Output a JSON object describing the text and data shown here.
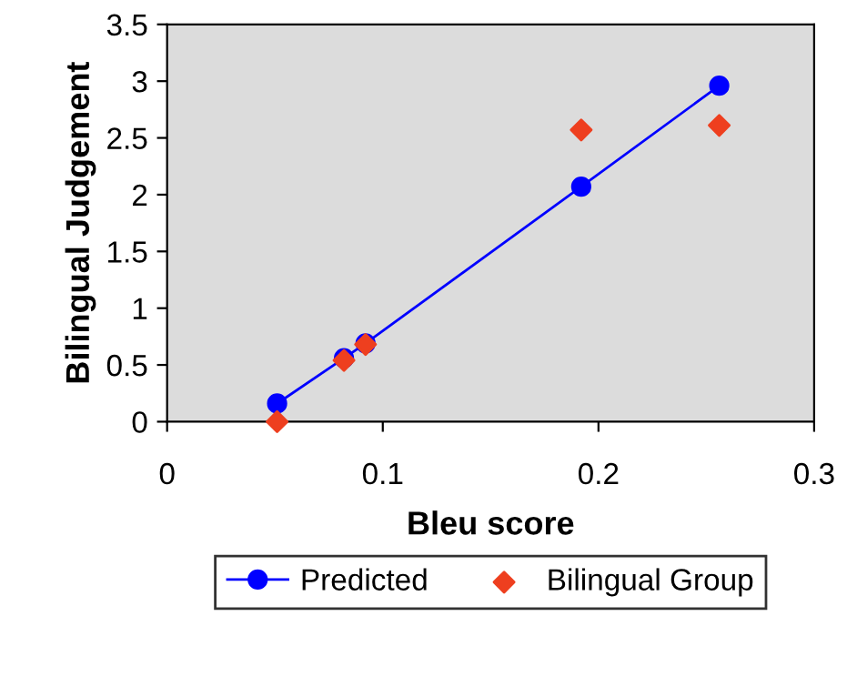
{
  "chart_data": {
    "type": "scatter",
    "xlabel": "Bleu score",
    "ylabel": "Bilingual Judgement",
    "xlim": [
      0,
      0.3
    ],
    "xticks": [
      0,
      0.1,
      0.2,
      0.3
    ],
    "ylim": [
      0,
      3.5
    ],
    "yticks": [
      0,
      0.5,
      1,
      1.5,
      2,
      2.5,
      3,
      3.5
    ],
    "grid": false,
    "legend": "bottom",
    "series": [
      {
        "name": "Predicted",
        "type": "line",
        "marker": "circle",
        "line_style": "solid",
        "color": "#0000ff",
        "x": [
          0.051,
          0.082,
          0.092,
          0.192,
          0.256
        ],
        "values": [
          0.16,
          0.56,
          0.69,
          2.07,
          2.96
        ]
      },
      {
        "name": "Bilingual Group",
        "marker": "diamond",
        "color": "#ee3f1f",
        "x": [
          0.051,
          0.082,
          0.092,
          0.192,
          0.256
        ],
        "values": [
          0.0,
          0.54,
          0.68,
          2.57,
          2.61
        ]
      }
    ]
  }
}
